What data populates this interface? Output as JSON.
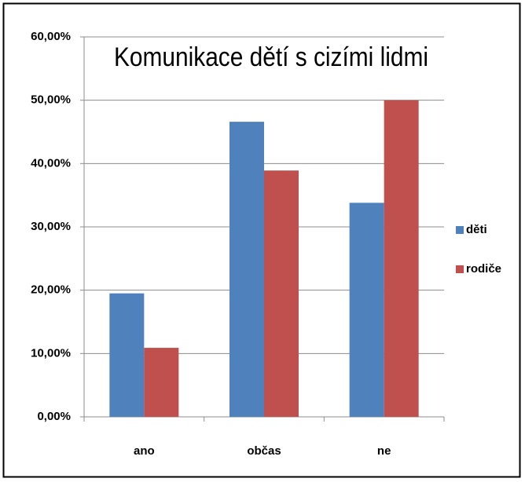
{
  "chart_data": {
    "type": "bar",
    "title": "Komunikace dětí s cizími lidmi",
    "categories": [
      "ano",
      "občas",
      "ne"
    ],
    "series": [
      {
        "name": "děti",
        "color": "#4f81bd",
        "values": [
          19.5,
          46.6,
          33.8
        ]
      },
      {
        "name": "rodiče",
        "color": "#c0504d",
        "values": [
          10.9,
          38.9,
          50.0
        ]
      }
    ],
    "ylim": [
      0,
      60
    ],
    "yticks": [
      {
        "value": 0,
        "label": "0,00%"
      },
      {
        "value": 10,
        "label": "10,00%"
      },
      {
        "value": 20,
        "label": "20,00%"
      },
      {
        "value": 30,
        "label": "30,00%"
      },
      {
        "value": 40,
        "label": "40,00%"
      },
      {
        "value": 50,
        "label": "50,00%"
      },
      {
        "value": 60,
        "label": "60,00%"
      }
    ],
    "grid": true,
    "legend": "right"
  }
}
